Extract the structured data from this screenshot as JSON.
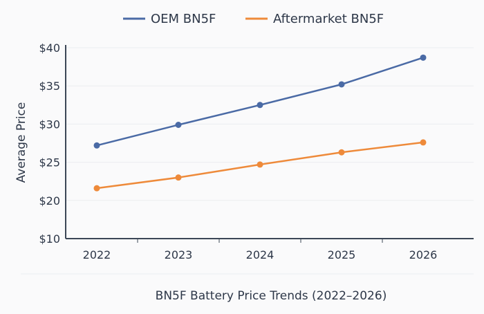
{
  "chart_data": {
    "type": "line",
    "title": "BN5F Battery Price Trends (2022–2026)",
    "xlabel": "",
    "ylabel": "Average Price",
    "categories": [
      "2022",
      "2023",
      "2024",
      "2025",
      "2026"
    ],
    "y_ticks": [
      {
        "value": 10,
        "label": "$10"
      },
      {
        "value": 20,
        "label": "$20"
      },
      {
        "value": 25,
        "label": "$25"
      },
      {
        "value": 30,
        "label": "$30"
      },
      {
        "value": 35,
        "label": "$35"
      },
      {
        "value": 40,
        "label": "$40"
      }
    ],
    "ylim": [
      10,
      40
    ],
    "grid": true,
    "legend_position": "top-center",
    "series": [
      {
        "name": "OEM BN5F",
        "color": "#4a6aa5",
        "values": [
          27.2,
          29.9,
          32.5,
          35.2,
          38.7
        ]
      },
      {
        "name": "Aftermarket BN5F",
        "color": "#ee8a3a",
        "values": [
          21.6,
          23.0,
          24.7,
          26.3,
          27.6
        ]
      }
    ]
  }
}
